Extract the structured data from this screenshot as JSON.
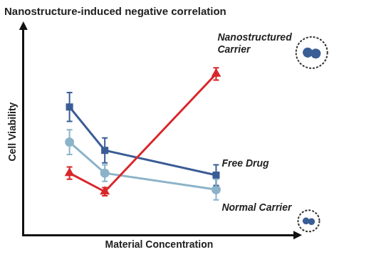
{
  "chart_data": {
    "type": "line",
    "title": "Nanostructure-induced negative correlation",
    "x_label": "Material Concentration",
    "y_label": "Cell Viability",
    "x": [
      17,
      30,
      71
    ],
    "xlim": [
      0,
      100
    ],
    "ylim": [
      0,
      100
    ],
    "grid": false,
    "tick_labels": false,
    "series": [
      {
        "name": "Nanostructured Carrier",
        "color": "#d9262b",
        "marker": "triangle",
        "values": [
          30,
          21,
          78
        ],
        "errors": [
          3,
          2,
          3
        ]
      },
      {
        "name": "Free Drug",
        "color": "#3a5d96",
        "marker": "square",
        "values": [
          62,
          41,
          29
        ],
        "errors": [
          7,
          6,
          5
        ]
      },
      {
        "name": "Normal Carrier",
        "color": "#8bb3c9",
        "marker": "circle",
        "values": [
          45,
          30,
          22
        ],
        "errors": [
          6,
          4,
          5
        ]
      }
    ]
  }
}
